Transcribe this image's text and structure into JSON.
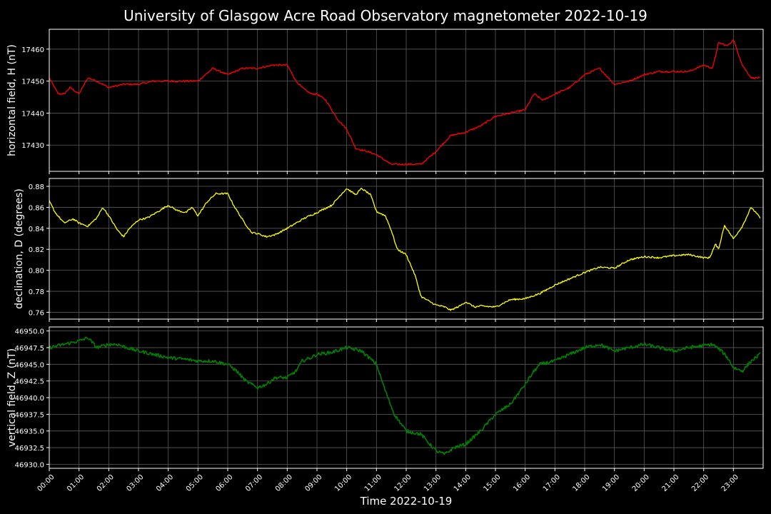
{
  "title": "University of Glasgow Acre Road Observatory magnetometer 2022-10-19",
  "xlabel": "Time 2022-10-19",
  "x_ticks": [
    "00:00",
    "01:00",
    "02:00",
    "03:00",
    "04:00",
    "05:00",
    "06:00",
    "07:00",
    "08:00",
    "09:00",
    "10:00",
    "11:00",
    "12:00",
    "13:00",
    "14:00",
    "15:00",
    "16:00",
    "17:00",
    "18:00",
    "19:00",
    "20:00",
    "21:00",
    "22:00",
    "23:00"
  ],
  "chart_data": [
    {
      "type": "line",
      "color": "#ff0000",
      "ylabel": "horizontal field, H (nT)",
      "ylim": [
        17421.8,
        17466.2
      ],
      "yticks": [
        "17430",
        "17440",
        "17450",
        "17460"
      ],
      "ytick_values": [
        17430,
        17440,
        17450,
        17460
      ],
      "grid": true,
      "x_hours": [
        0,
        0.3,
        0.5,
        0.7,
        1.0,
        1.3,
        1.6,
        2.0,
        2.5,
        3.0,
        3.5,
        4.0,
        4.5,
        5.0,
        5.5,
        6.0,
        6.5,
        7.0,
        7.5,
        8.0,
        8.3,
        8.5,
        8.8,
        9.0,
        9.3,
        9.7,
        10.0,
        10.3,
        10.7,
        11.0,
        11.5,
        12.0,
        12.5,
        13.0,
        13.5,
        14.0,
        14.5,
        15.0,
        15.5,
        16.0,
        16.3,
        16.6,
        17.0,
        17.5,
        18.0,
        18.5,
        19.0,
        19.5,
        20.0,
        20.5,
        21.0,
        21.5,
        22.0,
        22.3,
        22.5,
        22.8,
        23.0,
        23.3,
        23.6,
        23.9
      ],
      "values": [
        17451,
        17446,
        17446,
        17448,
        17446,
        17451,
        17450,
        17448,
        17449,
        17449,
        17450,
        17450,
        17450,
        17450,
        17454,
        17452,
        17454,
        17454,
        17455,
        17455,
        17450,
        17448,
        17446,
        17446,
        17444,
        17438,
        17435,
        17429,
        17428,
        17427,
        17424,
        17424,
        17424,
        17428,
        17433,
        17434,
        17436,
        17439,
        17440,
        17441,
        17446,
        17444,
        17446,
        17448,
        17452,
        17454,
        17449,
        17450,
        17452,
        17453,
        17453,
        17453,
        17455,
        17454,
        17462,
        17461,
        17463,
        17455,
        17451,
        17451
      ]
    },
    {
      "type": "line",
      "color": "#ffff00",
      "ylabel": "declination, D (degrees)",
      "ylim": [
        0.7535,
        0.8875
      ],
      "yticks": [
        "0.76",
        "0.78",
        "0.80",
        "0.82",
        "0.84",
        "0.86",
        "0.88"
      ],
      "ytick_values": [
        0.76,
        0.78,
        0.8,
        0.82,
        0.84,
        0.86,
        0.88
      ],
      "grid": true,
      "x_hours": [
        0,
        0.2,
        0.5,
        0.8,
        1.0,
        1.3,
        1.6,
        1.8,
        2.0,
        2.3,
        2.5,
        2.7,
        3.0,
        3.3,
        3.6,
        4.0,
        4.3,
        4.6,
        4.8,
        5.0,
        5.3,
        5.6,
        6.0,
        6.2,
        6.5,
        6.8,
        7.0,
        7.3,
        7.6,
        8.0,
        8.3,
        8.6,
        9.0,
        9.2,
        9.5,
        9.8,
        10.0,
        10.3,
        10.5,
        10.8,
        11.0,
        11.3,
        11.5,
        11.7,
        12.0,
        12.3,
        12.5,
        12.8,
        13.0,
        13.3,
        13.5,
        13.8,
        14.0,
        14.3,
        14.5,
        15.0,
        15.5,
        16.0,
        16.5,
        17.0,
        17.5,
        18.0,
        18.5,
        19.0,
        19.5,
        20.0,
        20.5,
        21.0,
        21.5,
        22.0,
        22.2,
        22.4,
        22.5,
        22.7,
        23.0,
        23.3,
        23.6,
        23.9
      ],
      "values": [
        0.866,
        0.855,
        0.845,
        0.849,
        0.845,
        0.842,
        0.85,
        0.86,
        0.852,
        0.838,
        0.832,
        0.84,
        0.848,
        0.85,
        0.855,
        0.862,
        0.857,
        0.855,
        0.86,
        0.852,
        0.865,
        0.873,
        0.873,
        0.862,
        0.848,
        0.836,
        0.835,
        0.832,
        0.834,
        0.84,
        0.845,
        0.85,
        0.855,
        0.858,
        0.862,
        0.872,
        0.878,
        0.872,
        0.878,
        0.872,
        0.856,
        0.852,
        0.838,
        0.82,
        0.815,
        0.795,
        0.775,
        0.77,
        0.767,
        0.765,
        0.762,
        0.766,
        0.77,
        0.765,
        0.766,
        0.765,
        0.772,
        0.773,
        0.778,
        0.786,
        0.792,
        0.798,
        0.803,
        0.802,
        0.81,
        0.813,
        0.812,
        0.814,
        0.815,
        0.812,
        0.812,
        0.825,
        0.82,
        0.843,
        0.83,
        0.842,
        0.86,
        0.85
      ]
    },
    {
      "type": "line",
      "color": "#008000",
      "ylabel": "vertical field, Z (nT)",
      "ylim": [
        46929.4,
        46950.6
      ],
      "yticks": [
        "46930.0",
        "46932.5",
        "46935.0",
        "46937.5",
        "46940.0",
        "46942.5",
        "46945.0",
        "46947.5",
        "46950.0"
      ],
      "ytick_values": [
        46930.0,
        46932.5,
        46935.0,
        46937.5,
        46940.0,
        46942.5,
        46945.0,
        46947.5,
        46950.0
      ],
      "grid": true,
      "x_hours": [
        0,
        0.5,
        1.0,
        1.3,
        1.6,
        2.0,
        2.3,
        2.6,
        3.0,
        3.5,
        4.0,
        4.5,
        5.0,
        5.5,
        6.0,
        6.3,
        6.6,
        7.0,
        7.3,
        7.6,
        8.0,
        8.3,
        8.5,
        8.8,
        9.0,
        9.5,
        10.0,
        10.5,
        11.0,
        11.3,
        11.6,
        12.0,
        12.5,
        13.0,
        13.3,
        13.6,
        14.0,
        14.5,
        15.0,
        15.5,
        16.0,
        16.3,
        16.5,
        17.0,
        17.5,
        18.0,
        18.5,
        19.0,
        19.5,
        20.0,
        20.5,
        21.0,
        21.5,
        22.0,
        22.3,
        22.6,
        22.8,
        23.0,
        23.3,
        23.6,
        23.9
      ],
      "values": [
        46947.5,
        46948,
        46948.5,
        46949,
        46947.5,
        46948,
        46948,
        46947.5,
        46947,
        46946.5,
        46946,
        46945.8,
        46945.5,
        46945.5,
        46945,
        46944,
        46942.5,
        46941.5,
        46942,
        46943,
        46943,
        46944,
        46945.5,
        46946,
        46946.5,
        46946.8,
        46947.5,
        46947,
        46945,
        46941,
        46937.5,
        46935,
        46934.5,
        46932,
        46931.5,
        46932.5,
        46933,
        46935,
        46937.5,
        46939,
        46942,
        46944,
        46945,
        46945.5,
        46946.5,
        46947.5,
        46948,
        46947,
        46947.5,
        46948,
        46947.5,
        46947,
        46947.5,
        46947.8,
        46948,
        46947,
        46946,
        46944.5,
        46944,
        46945.5,
        46946.5
      ]
    }
  ]
}
